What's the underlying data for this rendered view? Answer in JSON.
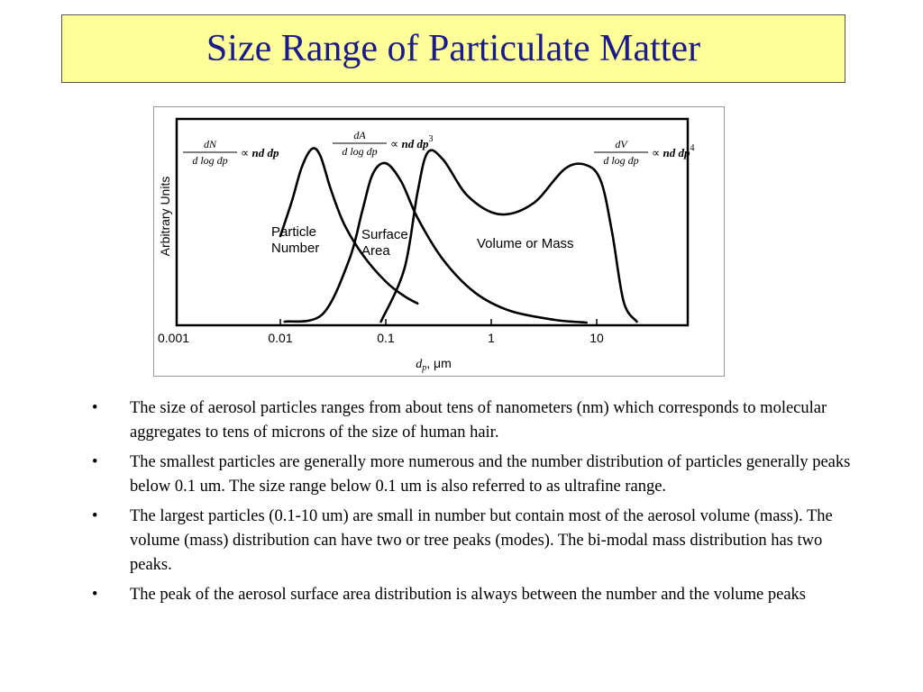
{
  "slide": {
    "title": "Size Range of Particulate Matter",
    "bullets": [
      "The size of aerosol particles ranges from about tens of nanometers (nm) which corresponds to molecular aggregates to tens of microns of the size of human hair.",
      "The smallest particles are generally more numerous and the number distribution of particles generally peaks below 0.1 um. The size range below 0.1 um is also referred to as ultrafine range.",
      "The largest particles (0.1-10 um) are small in number but contain most of the aerosol volume (mass). The volume (mass) distribution can have two or tree peaks (modes). The bi-modal mass distribution has two peaks.",
      "The peak of the aerosol surface area distribution is always between the number and the volume peaks"
    ],
    "bullet_glyph": "•"
  },
  "chart_data": {
    "type": "line",
    "xscale": "log",
    "xlim": [
      0.001,
      60
    ],
    "ylim": [
      0,
      1
    ],
    "ylabel": "Arbitrary Units",
    "xlabel": "dp, μm",
    "xticks": [
      "0.001",
      "0.01",
      "0.1",
      "1",
      "10"
    ],
    "series": [
      {
        "name": "Particle Number",
        "x": [
          0.01,
          0.013,
          0.016,
          0.02,
          0.024,
          0.03,
          0.04,
          0.06,
          0.1,
          0.15,
          0.2
        ],
        "y": [
          0.48,
          0.68,
          0.86,
          0.96,
          0.92,
          0.74,
          0.55,
          0.38,
          0.23,
          0.15,
          0.11
        ]
      },
      {
        "name": "Surface Area",
        "x": [
          0.011,
          0.025,
          0.045,
          0.06,
          0.075,
          0.1,
          0.14,
          0.2,
          0.35,
          0.7,
          1.5,
          4,
          8
        ],
        "y": [
          0.01,
          0.05,
          0.35,
          0.62,
          0.82,
          0.88,
          0.78,
          0.58,
          0.35,
          0.17,
          0.07,
          0.02,
          0.005
        ]
      },
      {
        "name": "Volume or Mass",
        "x": [
          0.09,
          0.15,
          0.2,
          0.25,
          0.35,
          0.6,
          1.2,
          2.5,
          5,
          8,
          11,
          14,
          18,
          24
        ],
        "y": [
          0.01,
          0.3,
          0.72,
          0.94,
          0.9,
          0.7,
          0.6,
          0.66,
          0.85,
          0.87,
          0.78,
          0.5,
          0.12,
          0.01
        ]
      }
    ],
    "annotations": [
      {
        "text_lines": [
          "Particle",
          "Number"
        ],
        "series": "Particle Number"
      },
      {
        "text_lines": [
          "Surface",
          "Area"
        ],
        "series": "Surface Area"
      },
      {
        "text_lines": [
          "Volume or Mass"
        ],
        "series": "Volume or Mass"
      }
    ],
    "formulas": [
      {
        "num": "dN",
        "den": "d log dp",
        "prop": "∝",
        "rhs": "nd dp",
        "exp": ""
      },
      {
        "num": "dA",
        "den": "d log dp",
        "prop": "∝",
        "rhs": "nd dp",
        "exp": "3"
      },
      {
        "num": "dV",
        "den": "d log dp",
        "prop": "∝",
        "rhs": "nd dp",
        "exp": "4"
      }
    ],
    "grid": false,
    "legend": "none"
  }
}
